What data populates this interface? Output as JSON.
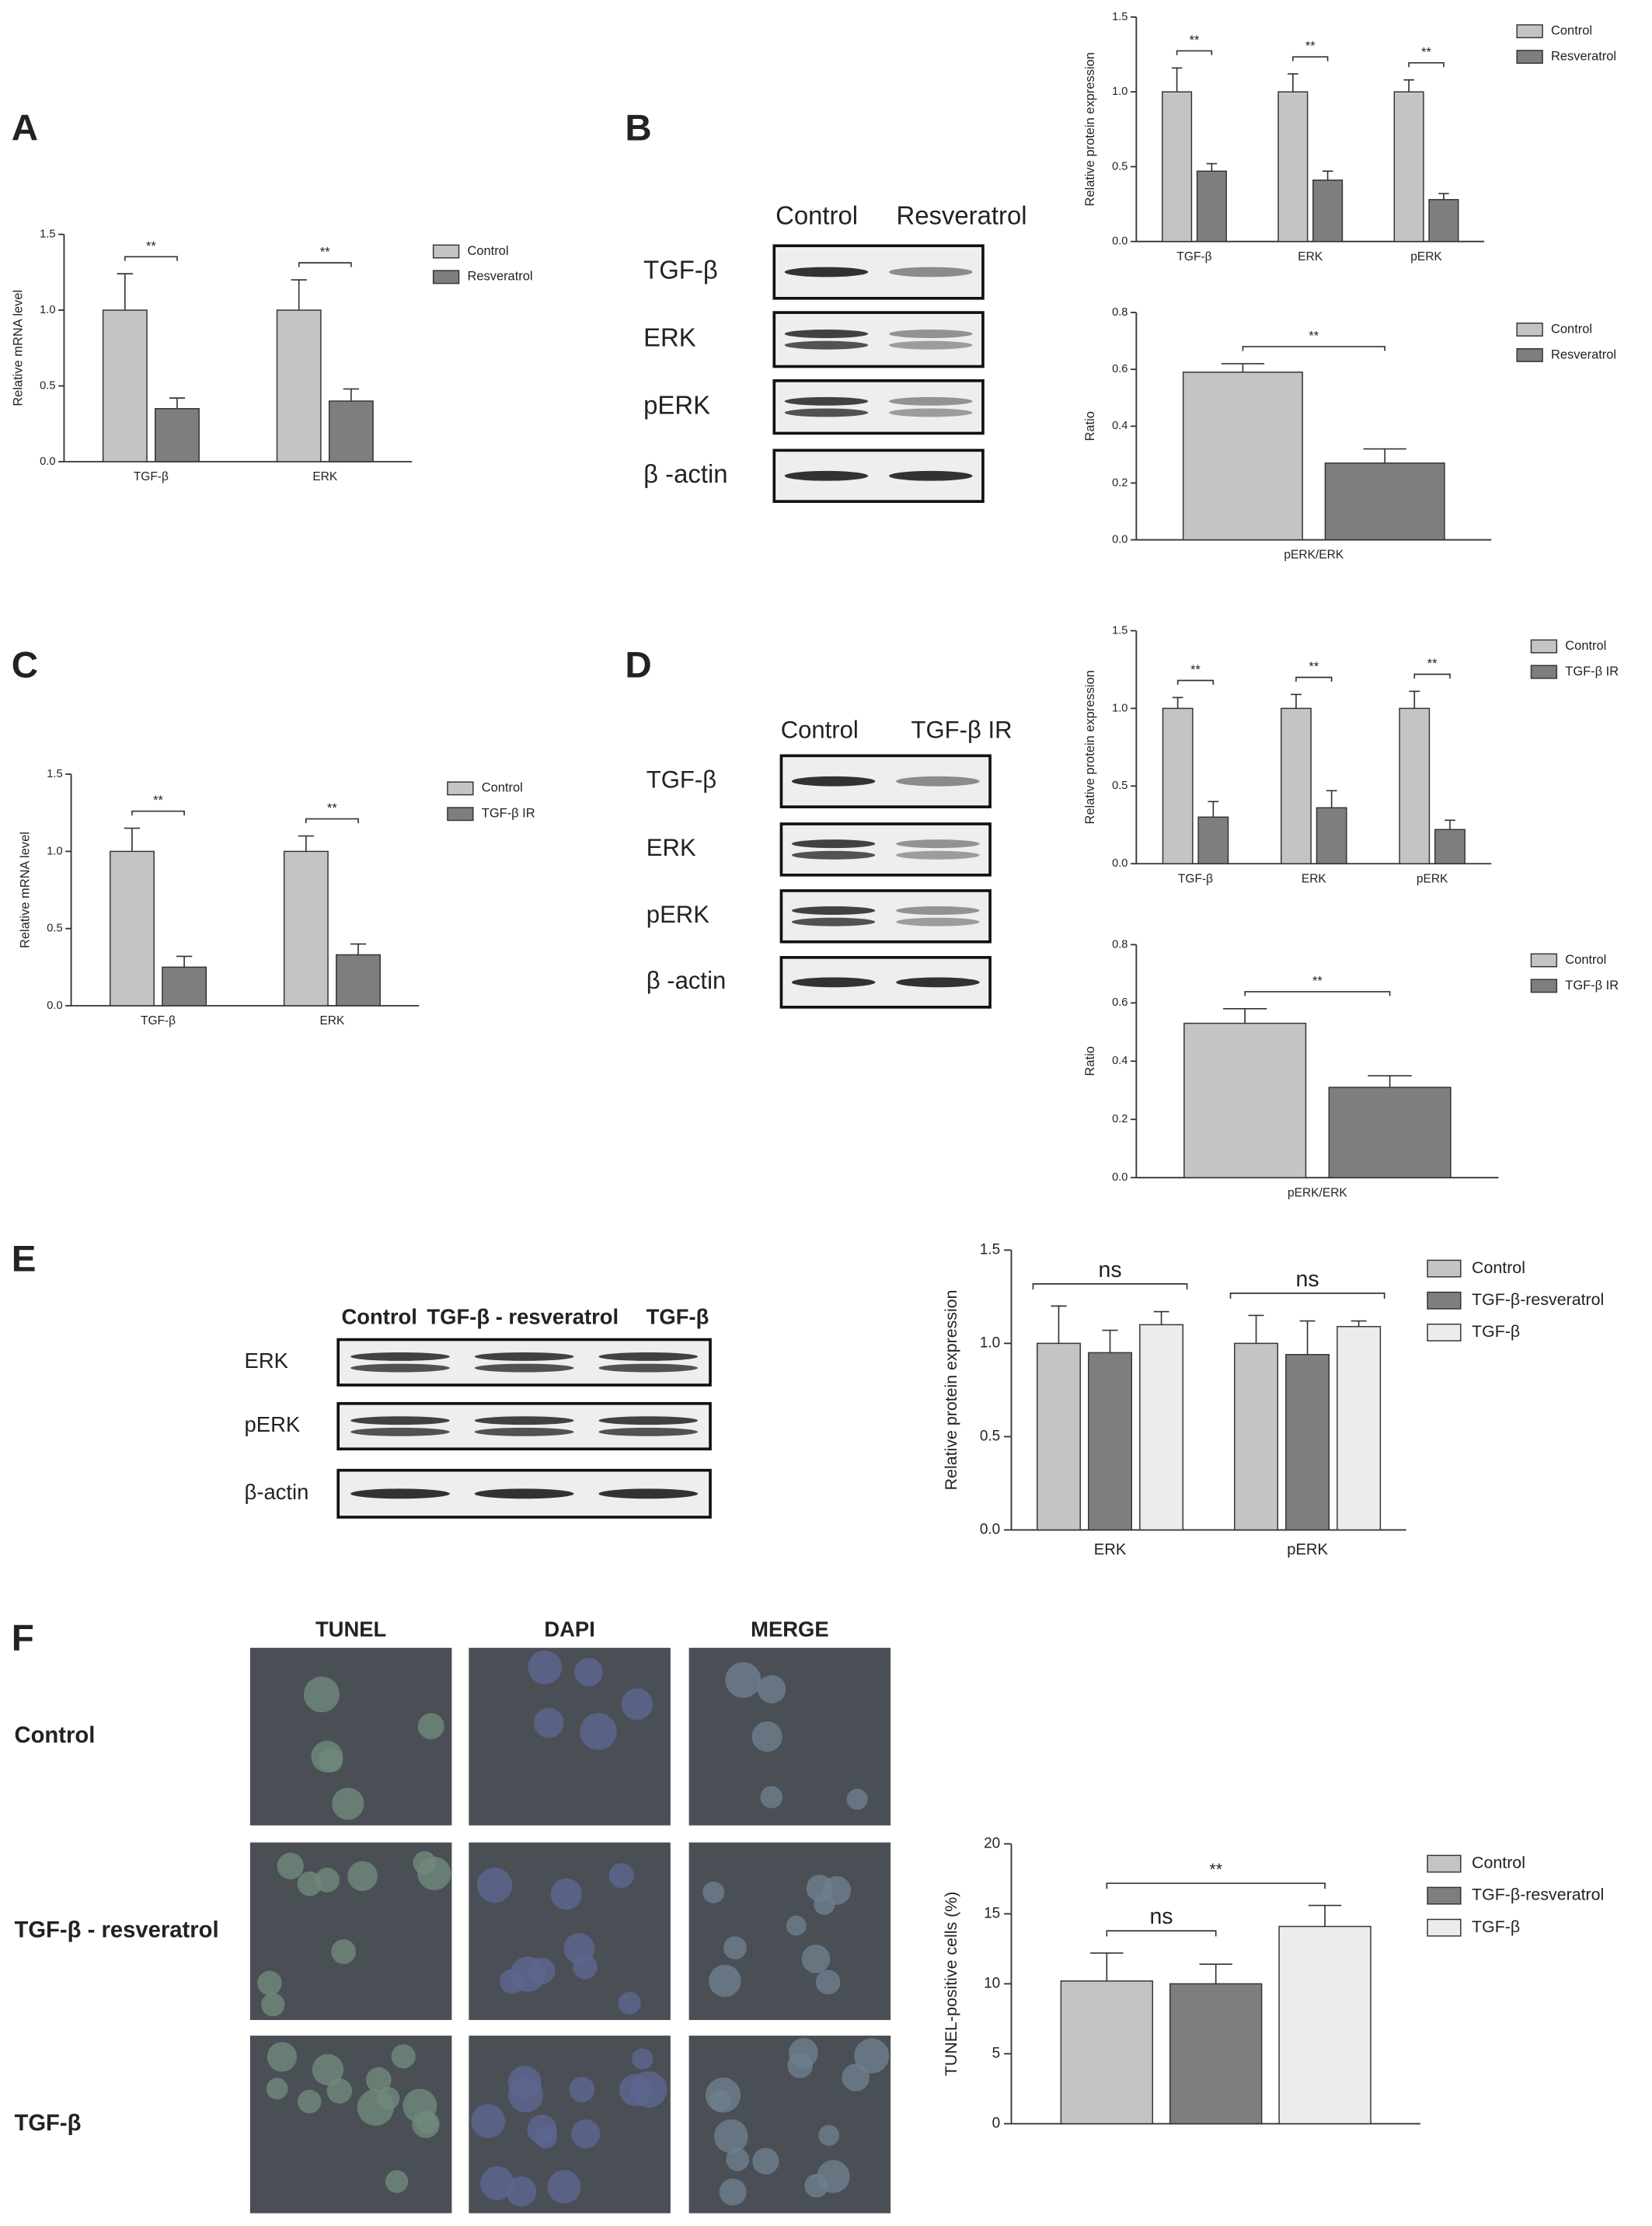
{
  "panels": [
    "A",
    "B",
    "C",
    "D",
    "E",
    "F"
  ],
  "blots": [
    {
      "columns": [
        "Control",
        "Resveratrol"
      ],
      "rows": [
        "TGF-β",
        "ERK",
        "pERK",
        "β -actin"
      ]
    },
    {
      "columns": [
        "Control",
        "TGF-β IR"
      ],
      "rows": [
        "TGF-β",
        "ERK",
        "pERK",
        "β -actin"
      ]
    },
    {
      "columns": [
        "Control",
        "TGF-β - resveratrol",
        "TGF-β"
      ],
      "rows": [
        "ERK",
        "pERK",
        "β-actin"
      ]
    }
  ],
  "microscopy": {
    "columns": [
      "TUNEL",
      "DAPI",
      "MERGE"
    ],
    "rows": [
      "Control",
      "TGF-β - resveratrol",
      "TGF-β"
    ]
  },
  "chart_data": [
    {
      "type": "bar",
      "ylabel": "Relative mRNA level",
      "categories": [
        "TGF-β",
        "ERK"
      ],
      "series": [
        {
          "name": "Control",
          "color": "#c4c4c4",
          "values": [
            1.0,
            1.0
          ],
          "errors": [
            0.24,
            0.2
          ]
        },
        {
          "name": "Resveratrol",
          "color": "#7e7e7e",
          "values": [
            0.35,
            0.4
          ],
          "errors": [
            0.07,
            0.08
          ]
        }
      ],
      "ylim": [
        0,
        1.5
      ],
      "yticks": [
        {
          "value": 0,
          "label": "0.0"
        },
        0.5,
        {
          "value": 1,
          "label": "1.0"
        },
        1.5
      ],
      "annotations": [
        "**",
        "**"
      ]
    },
    {
      "type": "bar",
      "ylabel": "Relative protein expression",
      "categories": [
        "TGF-β",
        "ERK",
        "pERK"
      ],
      "series": [
        {
          "name": "Control",
          "color": "#c4c4c4",
          "values": [
            1.0,
            1.0,
            1.0
          ],
          "errors": [
            0.16,
            0.12,
            0.08
          ]
        },
        {
          "name": "Resveratrol",
          "color": "#7e7e7e",
          "values": [
            0.47,
            0.41,
            0.28
          ],
          "errors": [
            0.05,
            0.06,
            0.04
          ]
        }
      ],
      "ylim": [
        0,
        1.5
      ],
      "yticks": [
        {
          "value": 0,
          "label": "0.0"
        },
        0.5,
        {
          "value": 1,
          "label": "1.0"
        },
        1.5
      ],
      "annotations": [
        "**",
        "**",
        "**"
      ]
    },
    {
      "type": "bar",
      "ylabel": "Ratio",
      "categories": [
        "pERK/ERK"
      ],
      "series": [
        {
          "name": "Control",
          "color": "#c4c4c4",
          "values": [
            0.59
          ],
          "errors": [
            0.03
          ]
        },
        {
          "name": "Resveratrol",
          "color": "#7e7e7e",
          "values": [
            0.27
          ],
          "errors": [
            0.05
          ]
        }
      ],
      "ylim": [
        0,
        0.8
      ],
      "yticks": [
        {
          "value": 0,
          "label": "0.0"
        },
        0.2,
        0.4,
        0.6,
        0.8
      ],
      "annotations": [
        "**"
      ]
    },
    {
      "type": "bar",
      "ylabel": "Relative mRNA level",
      "categories": [
        "TGF-β",
        "ERK"
      ],
      "series": [
        {
          "name": "Control",
          "color": "#c4c4c4",
          "values": [
            1.0,
            1.0
          ],
          "errors": [
            0.15,
            0.1
          ]
        },
        {
          "name": "TGF-β IR",
          "color": "#7e7e7e",
          "values": [
            0.25,
            0.33
          ],
          "errors": [
            0.07,
            0.07
          ]
        }
      ],
      "ylim": [
        0,
        1.5
      ],
      "yticks": [
        {
          "value": 0,
          "label": "0.0"
        },
        0.5,
        {
          "value": 1,
          "label": "1.0"
        },
        1.5
      ],
      "annotations": [
        "**",
        "**"
      ]
    },
    {
      "type": "bar",
      "ylabel": "Relative protein expression",
      "categories": [
        "TGF-β",
        "ERK",
        "pERK"
      ],
      "series": [
        {
          "name": "Control",
          "color": "#c4c4c4",
          "values": [
            1.0,
            1.0,
            1.0
          ],
          "errors": [
            0.07,
            0.09,
            0.11
          ]
        },
        {
          "name": "TGF-β IR",
          "color": "#7e7e7e",
          "values": [
            0.3,
            0.36,
            0.22
          ],
          "errors": [
            0.1,
            0.11,
            0.06
          ]
        }
      ],
      "ylim": [
        0,
        1.5
      ],
      "yticks": [
        {
          "value": 0,
          "label": "0.0"
        },
        0.5,
        {
          "value": 1,
          "label": "1.0"
        },
        1.5
      ],
      "annotations": [
        "**",
        "**",
        "**"
      ]
    },
    {
      "type": "bar",
      "ylabel": "Ratio",
      "categories": [
        "pERK/ERK"
      ],
      "series": [
        {
          "name": "Control",
          "color": "#c4c4c4",
          "values": [
            0.53
          ],
          "errors": [
            0.05
          ]
        },
        {
          "name": "TGF-β IR",
          "color": "#7e7e7e",
          "values": [
            0.31
          ],
          "errors": [
            0.04
          ]
        }
      ],
      "ylim": [
        0,
        0.8
      ],
      "yticks": [
        {
          "value": 0,
          "label": "0.0"
        },
        0.2,
        0.4,
        0.6,
        0.8
      ],
      "annotations": [
        "**"
      ]
    },
    {
      "type": "bar",
      "ylabel": "Relative protein expression",
      "categories": [
        "ERK",
        "pERK"
      ],
      "series": [
        {
          "name": "Control",
          "color": "#c4c4c4",
          "values": [
            1.0,
            1.0
          ],
          "errors": [
            0.2,
            0.15
          ]
        },
        {
          "name": "TGF-β-resveratrol",
          "color": "#7e7e7e",
          "values": [
            0.95,
            0.94
          ],
          "errors": [
            0.12,
            0.18
          ]
        },
        {
          "name": "TGF-β",
          "color": "#ececec",
          "values": [
            1.1,
            1.09
          ],
          "errors": [
            0.07,
            0.03
          ]
        }
      ],
      "ylim": [
        0,
        1.5
      ],
      "yticks": [
        {
          "value": 0,
          "label": "0.0"
        },
        0.5,
        {
          "value": 1,
          "label": "1.0"
        },
        1.5
      ],
      "annotations": [
        "ns",
        "ns"
      ]
    },
    {
      "type": "bar",
      "ylabel": "TUNEL-positive cells (%)",
      "categories": [
        null
      ],
      "series": [
        {
          "name": "Control",
          "color": "#c4c4c4",
          "values": [
            10.2
          ],
          "errors": [
            2.0
          ]
        },
        {
          "name": "TGF-β-resveratrol",
          "color": "#7e7e7e",
          "values": [
            10.0
          ],
          "errors": [
            1.4
          ]
        },
        {
          "name": "TGF-β",
          "color": "#ececec",
          "values": [
            14.1
          ],
          "errors": [
            1.5
          ]
        }
      ],
      "ylim": [
        0,
        20
      ],
      "yticks": [
        0,
        5,
        10,
        15,
        20
      ],
      "annotations": [
        "ns",
        "**"
      ]
    }
  ]
}
